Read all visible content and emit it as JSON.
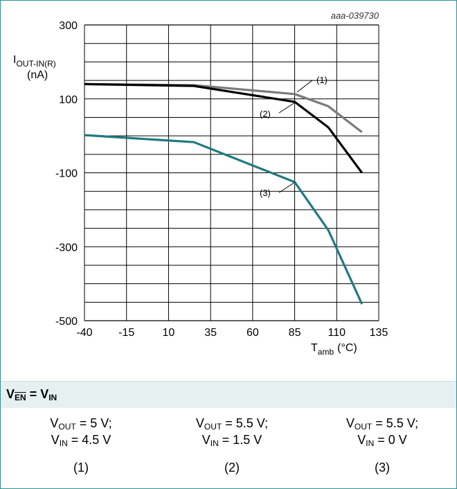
{
  "chart_data": {
    "type": "line",
    "figure_id": "aaa-039730",
    "ylabel": {
      "main": "I",
      "sub": "OUT-IN(R)",
      "unit": "(nA)"
    },
    "xlabel": {
      "main": "T",
      "sub": "amb",
      "unit": "(°C)"
    },
    "xlim": [
      -40,
      135
    ],
    "ylim": [
      -500,
      300
    ],
    "xticks": [
      -40,
      -15,
      10,
      35,
      60,
      85,
      110,
      135
    ],
    "yticks": [
      300,
      100,
      -100,
      -300,
      -500
    ],
    "grid": true,
    "series": [
      {
        "name": "(1)",
        "color": "#7a7a7a",
        "x": [
          -40,
          25,
          85,
          105,
          125
        ],
        "y": [
          140,
          137,
          113,
          80,
          10
        ]
      },
      {
        "name": "(2)",
        "color": "#000000",
        "x": [
          -40,
          25,
          85,
          105,
          125
        ],
        "y": [
          140,
          135,
          92,
          23,
          -100
        ]
      },
      {
        "name": "(3)",
        "color": "#1f7a80",
        "x": [
          -40,
          25,
          85,
          105,
          125
        ],
        "y": [
          2,
          -17,
          -125,
          -255,
          -455
        ]
      }
    ]
  },
  "conditions": {
    "header_main": "V",
    "header_sub1": "EN",
    "header_eq": " = V",
    "header_sub2": "IN",
    "columns": [
      {
        "vout_label": "V",
        "vout_sub": "OUT",
        "vout_val": " = 5 V;",
        "vin_label": "V",
        "vin_sub": "IN",
        "vin_val": " = 4.5 V",
        "index": "(1)"
      },
      {
        "vout_label": "V",
        "vout_sub": "OUT",
        "vout_val": " = 5.5 V;",
        "vin_label": "V",
        "vin_sub": "IN",
        "vin_val": " = 1.5 V",
        "index": "(2)"
      },
      {
        "vout_label": "V",
        "vout_sub": "OUT",
        "vout_val": " = 5.5 V;",
        "vin_label": "V",
        "vin_sub": "IN",
        "vin_val": " = 0 V",
        "index": "(3)"
      }
    ]
  }
}
